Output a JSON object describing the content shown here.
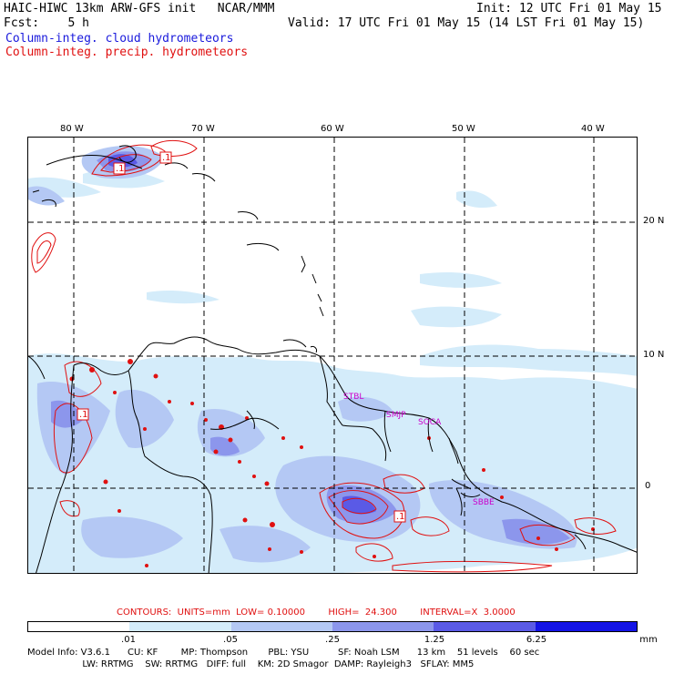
{
  "header": {
    "title": "HAIC-HIWC 13km ARW-GFS init   NCAR/MMM",
    "init": "Init: 12 UTC Fri 01 May 15",
    "fcst": "Fcst:    5 h",
    "valid": "Valid: 17 UTC Fri 01 May 15 (14 LST Fri 01 May 15)",
    "field1": "Column-integ. cloud hydrometeors",
    "field2": "Column-integ. precip. hydrometeors"
  },
  "map": {
    "lon_labels": [
      "80 W",
      "70 W",
      "60 W",
      "50 W",
      "40 W"
    ],
    "lat_labels": [
      "20 N",
      "10 N",
      "0"
    ],
    "site_labels": [
      "STBL",
      "SMJP",
      "SOCA",
      "SBBE"
    ],
    "contour_label": ".1",
    "colors": {
      "coast": "#000000",
      "contour": "#e01010",
      "site": "#cc00cc",
      "grid": "#000000"
    }
  },
  "legend": {
    "contours_text": "CONTOURS:  UNITS=mm  LOW= 0.10000        HIGH=  24.300        INTERVAL=X  3.0000",
    "units": "mm",
    "tick_labels": [
      ".01",
      ".05",
      ".25",
      "1.25",
      "6.25"
    ],
    "colors": [
      "#ffffff",
      "#d4ecfa",
      "#b4c8f4",
      "#8c96ec",
      "#5a5ae6",
      "#1414e6"
    ]
  },
  "footer": {
    "line1": "Model Info: V3.6.1      CU: KF        MP: Thompson       PBL: YSU          SF: Noah LSM      13 km    51 levels    60 sec",
    "line2": "                   LW: RRTMG    SW: RRTMG   DIFF: full    KM: 2D Smagor  DAMP: Rayleigh3   SFLAY: MM5"
  }
}
